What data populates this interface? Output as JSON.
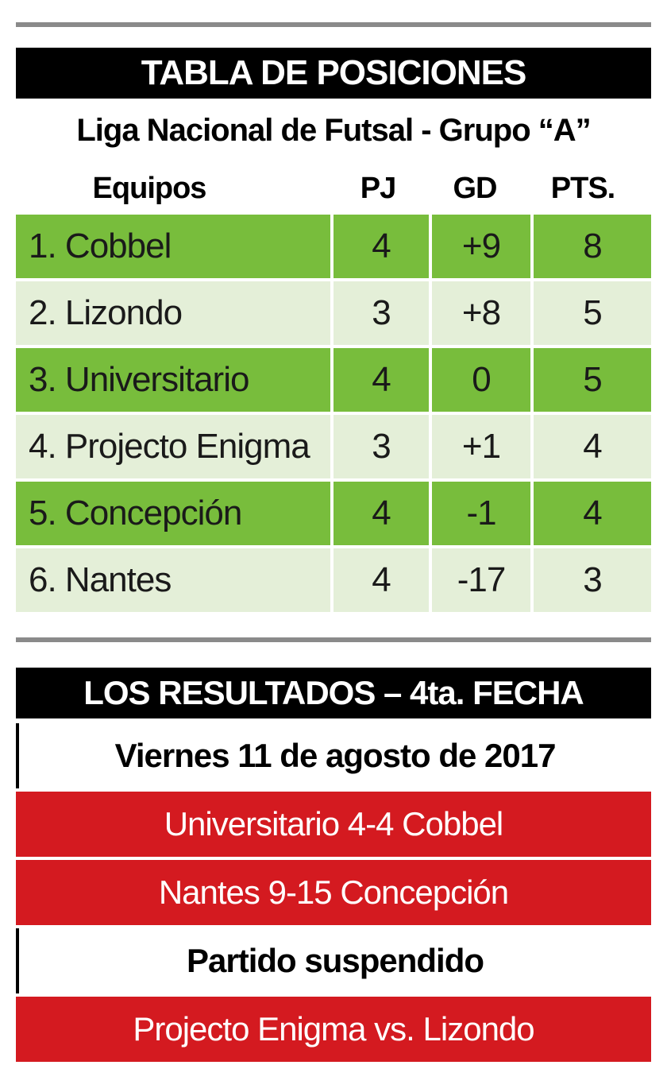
{
  "standings": {
    "banner": "TABLA DE POSICIONES",
    "subtitle": "Liga Nacional de Futsal - Grupo “A”",
    "headers": {
      "team": "Equipos",
      "pj": "PJ",
      "gd": "GD",
      "pts": "PTS."
    },
    "rows": [
      {
        "team": "1. Cobbel",
        "pj": "4",
        "gd": "+9",
        "pts": "8"
      },
      {
        "team": "2. Lizondo",
        "pj": "3",
        "gd": "+8",
        "pts": "5"
      },
      {
        "team": "3. Universitario",
        "pj": "4",
        "gd": "0",
        "pts": "5"
      },
      {
        "team": "4. Projecto Enigma",
        "pj": "3",
        "gd": "+1",
        "pts": "4"
      },
      {
        "team": "5. Concepción",
        "pj": "4",
        "gd": "-1",
        "pts": "4"
      },
      {
        "team": "6. Nantes",
        "pj": "4",
        "gd": "-17",
        "pts": "3"
      }
    ]
  },
  "results": {
    "banner": "LOS RESULTADOS – 4ta. FECHA",
    "date": "Viernes 11 de agosto de 2017",
    "match_1": "Universitario 4-4 Cobbel",
    "match_2": "Nantes 9-15 Concepción",
    "suspended_label": "Partido suspendido",
    "match_3": "Projecto Enigma vs. Lizondo"
  },
  "colors": {
    "row_green": "#78bd3c",
    "row_light": "#e4efd8",
    "result_red": "#d41a20",
    "banner_black": "#000000"
  }
}
